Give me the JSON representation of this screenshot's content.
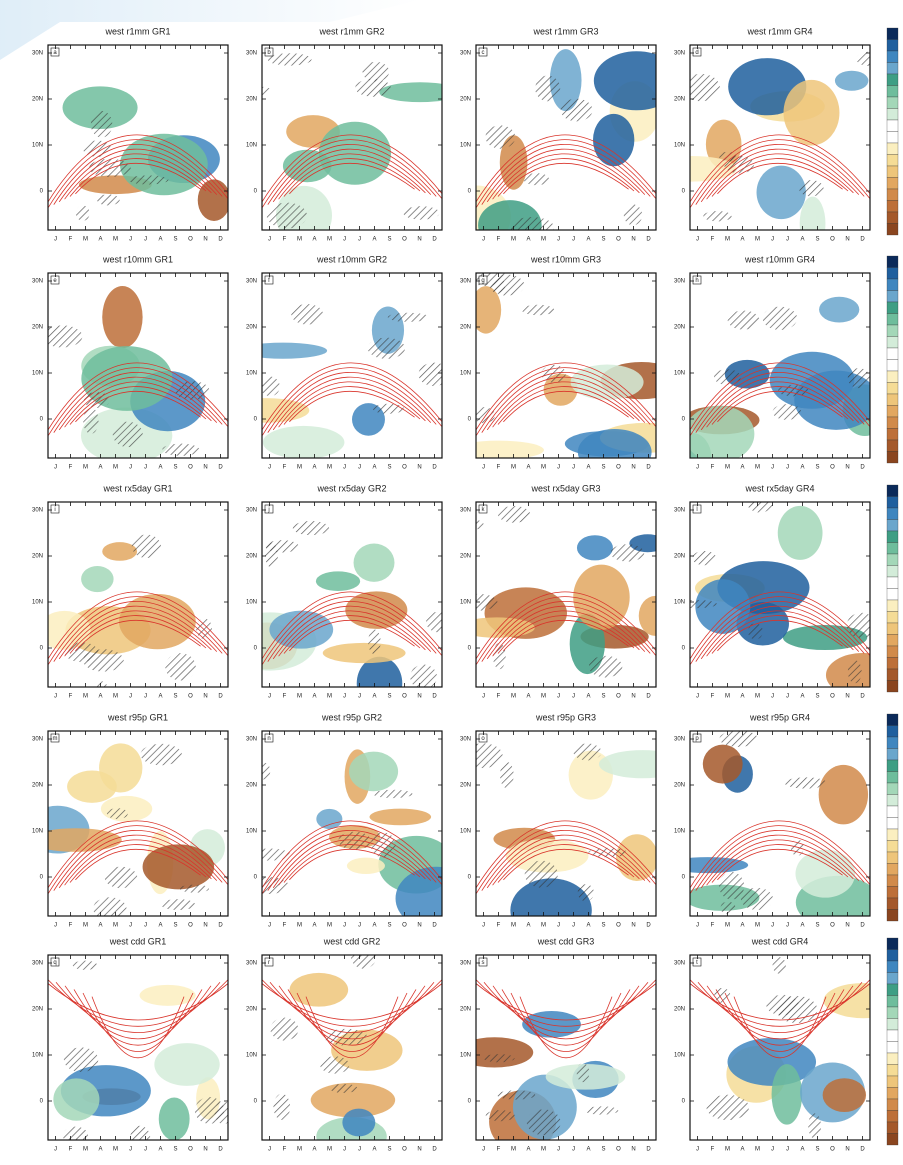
{
  "figure": {
    "panels": [
      {
        "title": "west r1mm GR1",
        "letter": "a"
      },
      {
        "title": "west r1mm GR2",
        "letter": "b"
      },
      {
        "title": "west r1mm GR3",
        "letter": "c"
      },
      {
        "title": "west r1mm GR4",
        "letter": "d"
      },
      {
        "title": "west r10mm GR1",
        "letter": "e"
      },
      {
        "title": "west r10mm GR2",
        "letter": "f"
      },
      {
        "title": "west r10mm GR3",
        "letter": "g"
      },
      {
        "title": "west r10mm GR4",
        "letter": "h"
      },
      {
        "title": "west rx5day GR1",
        "letter": "i"
      },
      {
        "title": "west rx5day GR2",
        "letter": "j"
      },
      {
        "title": "west rx5day GR3",
        "letter": "k"
      },
      {
        "title": "west rx5day GR4",
        "letter": "l"
      },
      {
        "title": "west r95p GR1",
        "letter": "m"
      },
      {
        "title": "west r95p GR2",
        "letter": "n"
      },
      {
        "title": "west r95p GR3",
        "letter": "o"
      },
      {
        "title": "west r95p GR4",
        "letter": "p"
      },
      {
        "title": "west cdd GR1",
        "letter": "q"
      },
      {
        "title": "west cdd GR2",
        "letter": "r"
      },
      {
        "title": "west cdd GR3",
        "letter": "s"
      },
      {
        "title": "west cdd GR4",
        "letter": "t"
      }
    ],
    "lat_labels": [
      "30N",
      "20N",
      "10N",
      "0"
    ],
    "months": [
      "J",
      "F",
      "M",
      "A",
      "M",
      "J",
      "J",
      "A",
      "S",
      "O",
      "N",
      "D"
    ],
    "colorbar_colors": [
      "#0b2a5a",
      "#1f5f9e",
      "#3f86bf",
      "#6aa6cc",
      "#3e9e84",
      "#6ebd9c",
      "#a3d7b8",
      "#d3ecd9",
      "#ffffff",
      "#ffffff",
      "#fbefc0",
      "#f5dc96",
      "#eec57a",
      "#e2a760",
      "#d18a4a",
      "#bd6f38",
      "#a4582a",
      "#8a451f"
    ]
  }
}
